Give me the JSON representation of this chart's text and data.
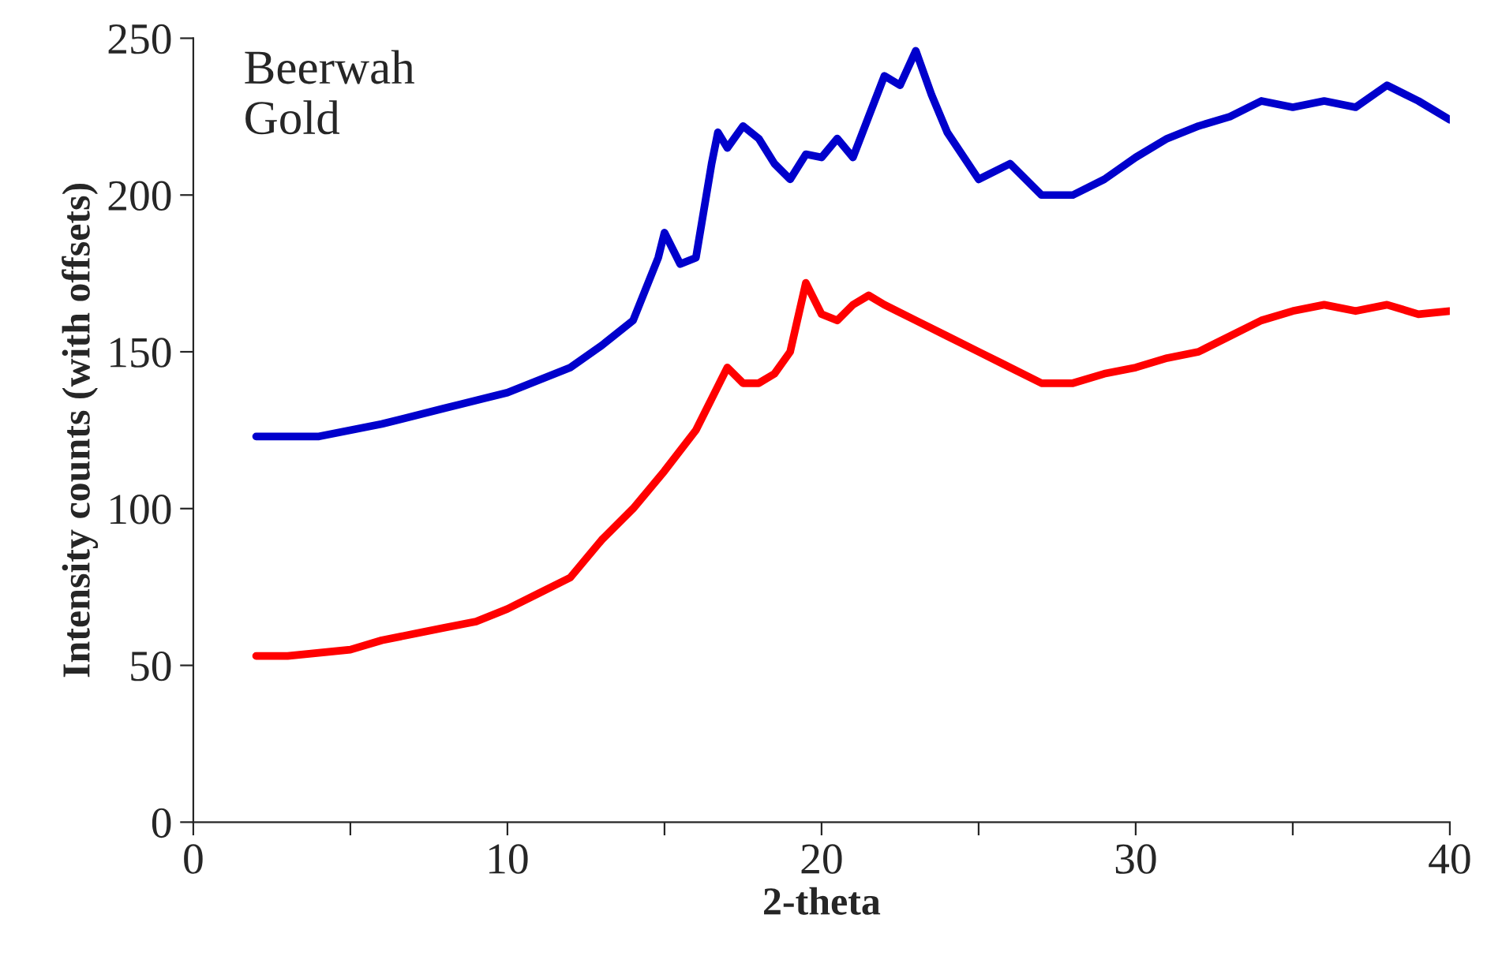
{
  "chart_data": {
    "type": "line",
    "xlabel": "2-theta",
    "ylabel": "Intensity counts (with offsets)",
    "annotations": [
      "Beerwah\nGold"
    ],
    "xlim": [
      0,
      40
    ],
    "ylim": [
      0,
      250
    ],
    "xticks": [
      0,
      {
        "value": 5,
        "label": null
      },
      10,
      {
        "value": 15,
        "label": null
      },
      20,
      {
        "value": 25,
        "label": null
      },
      30,
      {
        "value": 35,
        "label": null
      },
      40
    ],
    "yticks": [
      0,
      50,
      100,
      150,
      200,
      250
    ],
    "grid": false,
    "legend": false,
    "marker": "none",
    "line_style": "solid",
    "series": [
      {
        "color": "#0000cc",
        "x": [
          2,
          4,
          6,
          8,
          10,
          12,
          13,
          14,
          14.8,
          15,
          15.5,
          16,
          16.5,
          16.7,
          17,
          17.5,
          18,
          18.5,
          19,
          19.5,
          20,
          20.5,
          21,
          21.5,
          22,
          22.5,
          23,
          23.5,
          24,
          25,
          26,
          27,
          28,
          29,
          30,
          31,
          32,
          33,
          34,
          35,
          36,
          37,
          38,
          39,
          40
        ],
        "values": [
          123,
          123,
          127,
          132,
          137,
          145,
          152,
          160,
          180,
          188,
          178,
          180,
          210,
          220,
          215,
          222,
          218,
          210,
          205,
          213,
          212,
          218,
          212,
          225,
          238,
          235,
          246,
          232,
          220,
          205,
          210,
          200,
          200,
          205,
          212,
          218,
          222,
          225,
          230,
          228,
          230,
          228,
          235,
          230,
          224
        ]
      },
      {
        "color": "#ff0000",
        "x": [
          2,
          3,
          4,
          5,
          6,
          7,
          8,
          9,
          10,
          11,
          12,
          13,
          14,
          15,
          16,
          16.5,
          17,
          17.5,
          18,
          18.5,
          19,
          19.5,
          20,
          20.5,
          21,
          21.5,
          22,
          23,
          24,
          25,
          26,
          27,
          28,
          29,
          30,
          31,
          32,
          33,
          34,
          35,
          36,
          37,
          38,
          39,
          40
        ],
        "values": [
          53,
          53,
          54,
          55,
          58,
          60,
          62,
          64,
          68,
          73,
          78,
          90,
          100,
          112,
          125,
          135,
          145,
          140,
          140,
          143,
          150,
          172,
          162,
          160,
          165,
          168,
          165,
          160,
          155,
          150,
          145,
          140,
          140,
          143,
          145,
          148,
          150,
          155,
          160,
          163,
          165,
          163,
          165,
          162,
          163
        ]
      }
    ]
  }
}
